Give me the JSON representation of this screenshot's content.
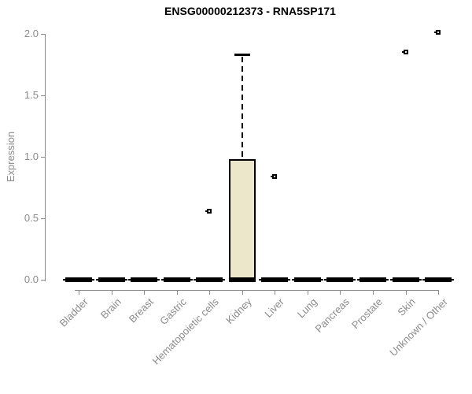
{
  "chart_data": {
    "type": "boxplot",
    "title": "ENSG00000212373 - RNA5SP171",
    "ylabel": "Expression",
    "xlabel": "",
    "ylim": [
      0.0,
      2.0
    ],
    "y_ticks": [
      0.0,
      0.5,
      1.0,
      1.5,
      2.0
    ],
    "y_tick_labels": [
      "0.0",
      "0.5",
      "1.0",
      "1.5",
      "2.0"
    ],
    "grid": false,
    "legend": "none",
    "categories": [
      "Bladder",
      "Brain",
      "Breast",
      "Gastric",
      "Hematopoietic cells",
      "Kidney",
      "Liver",
      "Lung",
      "Pancreas",
      "Prostate",
      "Skin",
      "Unknown / Other"
    ],
    "boxes": [
      {
        "category": "Bladder",
        "whisker_low": 0,
        "q1": 0,
        "median": 0,
        "q3": 0,
        "whisker_high": 0,
        "outliers": []
      },
      {
        "category": "Brain",
        "whisker_low": 0,
        "q1": 0,
        "median": 0,
        "q3": 0,
        "whisker_high": 0,
        "outliers": []
      },
      {
        "category": "Breast",
        "whisker_low": 0,
        "q1": 0,
        "median": 0,
        "q3": 0,
        "whisker_high": 0,
        "outliers": []
      },
      {
        "category": "Gastric",
        "whisker_low": 0,
        "q1": 0,
        "median": 0,
        "q3": 0,
        "whisker_high": 0,
        "outliers": []
      },
      {
        "category": "Hematopoietic cells",
        "whisker_low": 0,
        "q1": 0,
        "median": 0,
        "q3": 0,
        "whisker_high": 0,
        "outliers": [
          0.56
        ]
      },
      {
        "category": "Kidney",
        "whisker_low": 0,
        "q1": 0,
        "median": 0.02,
        "q3": 0.97,
        "whisker_high": 1.83,
        "outliers": []
      },
      {
        "category": "Liver",
        "whisker_low": 0,
        "q1": 0,
        "median": 0,
        "q3": 0,
        "whisker_high": 0,
        "outliers": [
          0.84
        ]
      },
      {
        "category": "Lung",
        "whisker_low": 0,
        "q1": 0,
        "median": 0,
        "q3": 0,
        "whisker_high": 0,
        "outliers": []
      },
      {
        "category": "Pancreas",
        "whisker_low": 0,
        "q1": 0,
        "median": 0,
        "q3": 0,
        "whisker_high": 0,
        "outliers": []
      },
      {
        "category": "Prostate",
        "whisker_low": 0,
        "q1": 0,
        "median": 0,
        "q3": 0,
        "whisker_high": 0,
        "outliers": []
      },
      {
        "category": "Skin",
        "whisker_low": 0,
        "q1": 0,
        "median": 0,
        "q3": 0,
        "whisker_high": 0,
        "outliers": [
          1.85
        ]
      },
      {
        "category": "Unknown / Other",
        "whisker_low": 0,
        "q1": 0,
        "median": 0,
        "q3": 0,
        "whisker_high": 0,
        "outliers": [
          2.01
        ]
      }
    ],
    "colors": {
      "box_fill": "#ece7cb",
      "box_border": "#000000",
      "median": "#000000",
      "whisker": "#000000",
      "outlier": "#000000",
      "axis": "#8b8b8b",
      "tick_text": "#8b8b8b",
      "title_text": "#000000",
      "background": "#ffffff"
    }
  }
}
